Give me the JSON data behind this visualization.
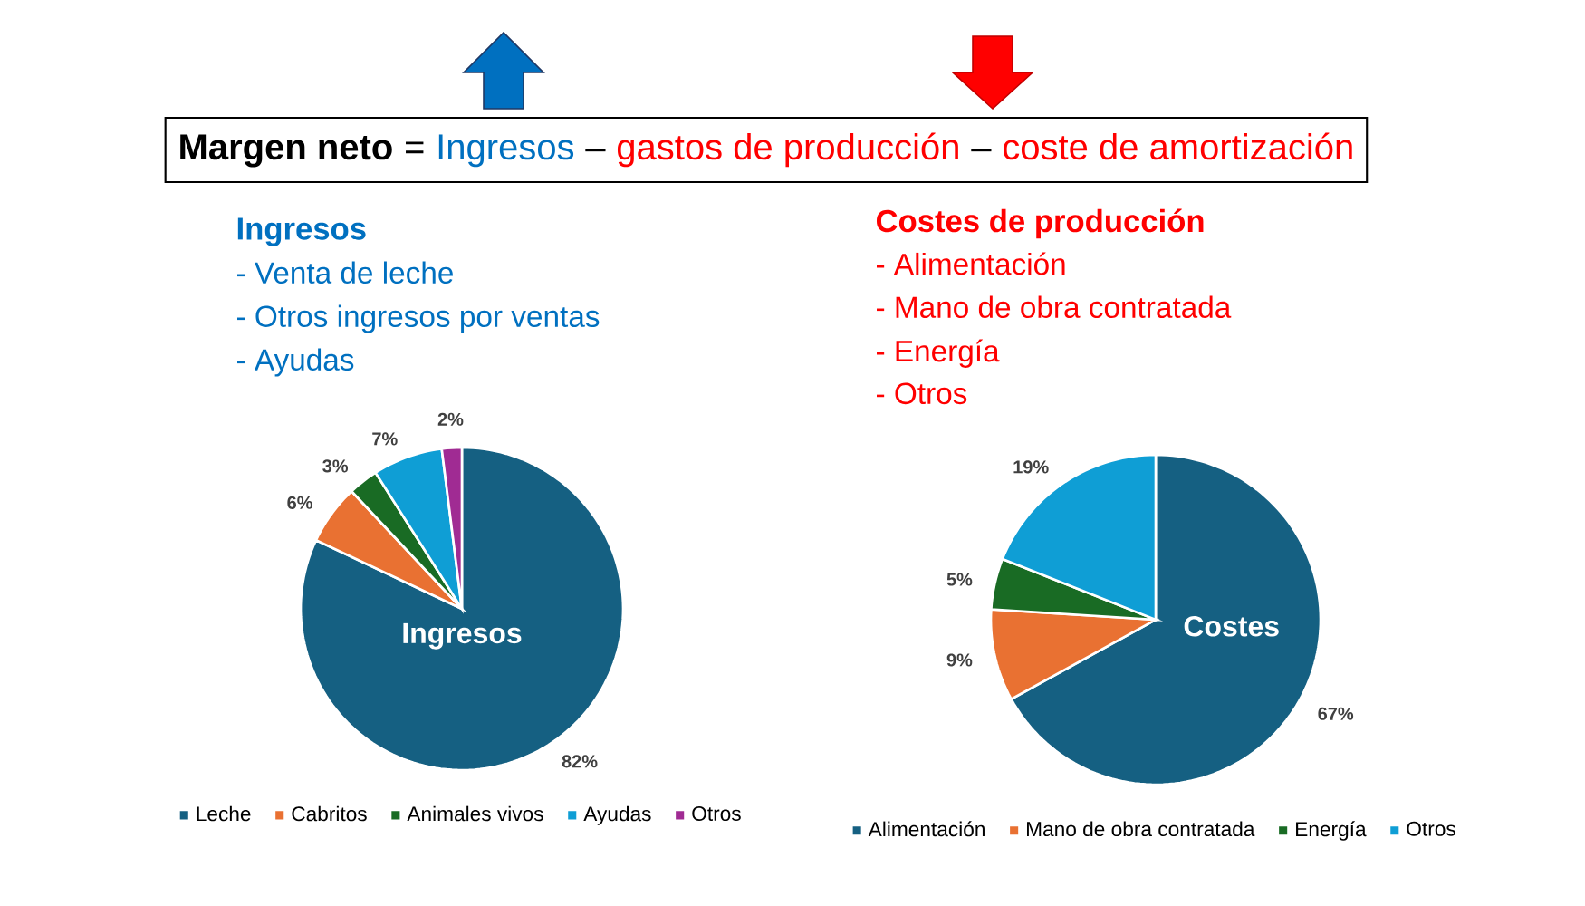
{
  "chart_data": [
    {
      "type": "other",
      "annotations": [
        "**Margen neto**",
        "=",
        "Ingresos",
        "–",
        "gastos de producción",
        "–",
        "coste de amortización"
      ],
      "colors": [
        "#000000",
        "#000000",
        "#0070c0",
        "#000000",
        "#ff0000",
        "#000000",
        "#ff0000"
      ]
    },
    {
      "type": "pie",
      "title": "Ingresos",
      "subtitle": "Ingresos",
      "annotations": [
        "- Venta de leche",
        "- Otros ingresos por ventas",
        "- Ayudas"
      ],
      "categories": [
        "Leche",
        "Cabritos",
        "Animales vivos",
        "Ayudas",
        "Otros"
      ],
      "values": [
        82,
        6,
        3,
        7,
        2
      ],
      "value_labels": [
        "82%",
        "6%",
        "3%",
        "7%",
        "2%"
      ],
      "colors": [
        "#156082",
        "#e97132",
        "#196b24",
        "#0f9ed5",
        "#a02b93"
      ],
      "legend": "bottom"
    },
    {
      "type": "pie",
      "title": "Costes de producción",
      "subtitle": "Costes",
      "annotations": [
        "- Alimentación",
        "- Mano de obra contratada",
        "- Energía",
        "- Otros"
      ],
      "categories": [
        "Alimentación",
        "Mano de obra contratada",
        "Energía",
        "Otros"
      ],
      "values": [
        67,
        9,
        5,
        19
      ],
      "value_labels": [
        "67%",
        "9%",
        "5%",
        "19%"
      ],
      "colors": [
        "#156082",
        "#e97132",
        "#196b24",
        "#0f9ed5"
      ],
      "legend": "bottom"
    }
  ]
}
